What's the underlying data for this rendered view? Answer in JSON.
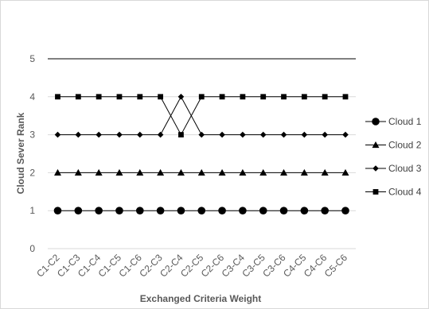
{
  "chart_data": {
    "type": "line",
    "title": "",
    "xlabel": "Exchanged Criteria Weight",
    "ylabel": "Cloud Sever Rank",
    "ylim": [
      0,
      5
    ],
    "yticks": [
      0,
      1,
      2,
      3,
      4,
      5
    ],
    "grid": true,
    "legend_position": "right",
    "categories": [
      "C1-C2",
      "C1-C3",
      "C1-C4",
      "C1-C5",
      "C1-C6",
      "C2-C3",
      "C2-C4",
      "C2-C5",
      "C2-C6",
      "C3-C4",
      "C3-C5",
      "C3-C6",
      "C4-C5",
      "C4-C6",
      "C5-C6"
    ],
    "series": [
      {
        "name": "Cloud 1",
        "marker": "circle",
        "color": "#000000",
        "values": [
          1,
          1,
          1,
          1,
          1,
          1,
          1,
          1,
          1,
          1,
          1,
          1,
          1,
          1,
          1
        ]
      },
      {
        "name": "Cloud 2",
        "marker": "triangle",
        "color": "#000000",
        "values": [
          2,
          2,
          2,
          2,
          2,
          2,
          2,
          2,
          2,
          2,
          2,
          2,
          2,
          2,
          2
        ]
      },
      {
        "name": "Cloud 3",
        "marker": "diamond",
        "color": "#000000",
        "values": [
          3,
          3,
          3,
          3,
          3,
          3,
          4,
          3,
          3,
          3,
          3,
          3,
          3,
          3,
          3
        ]
      },
      {
        "name": "Cloud 4",
        "marker": "square",
        "color": "#000000",
        "values": [
          4,
          4,
          4,
          4,
          4,
          4,
          3,
          4,
          4,
          4,
          4,
          4,
          4,
          4,
          4
        ]
      }
    ]
  }
}
